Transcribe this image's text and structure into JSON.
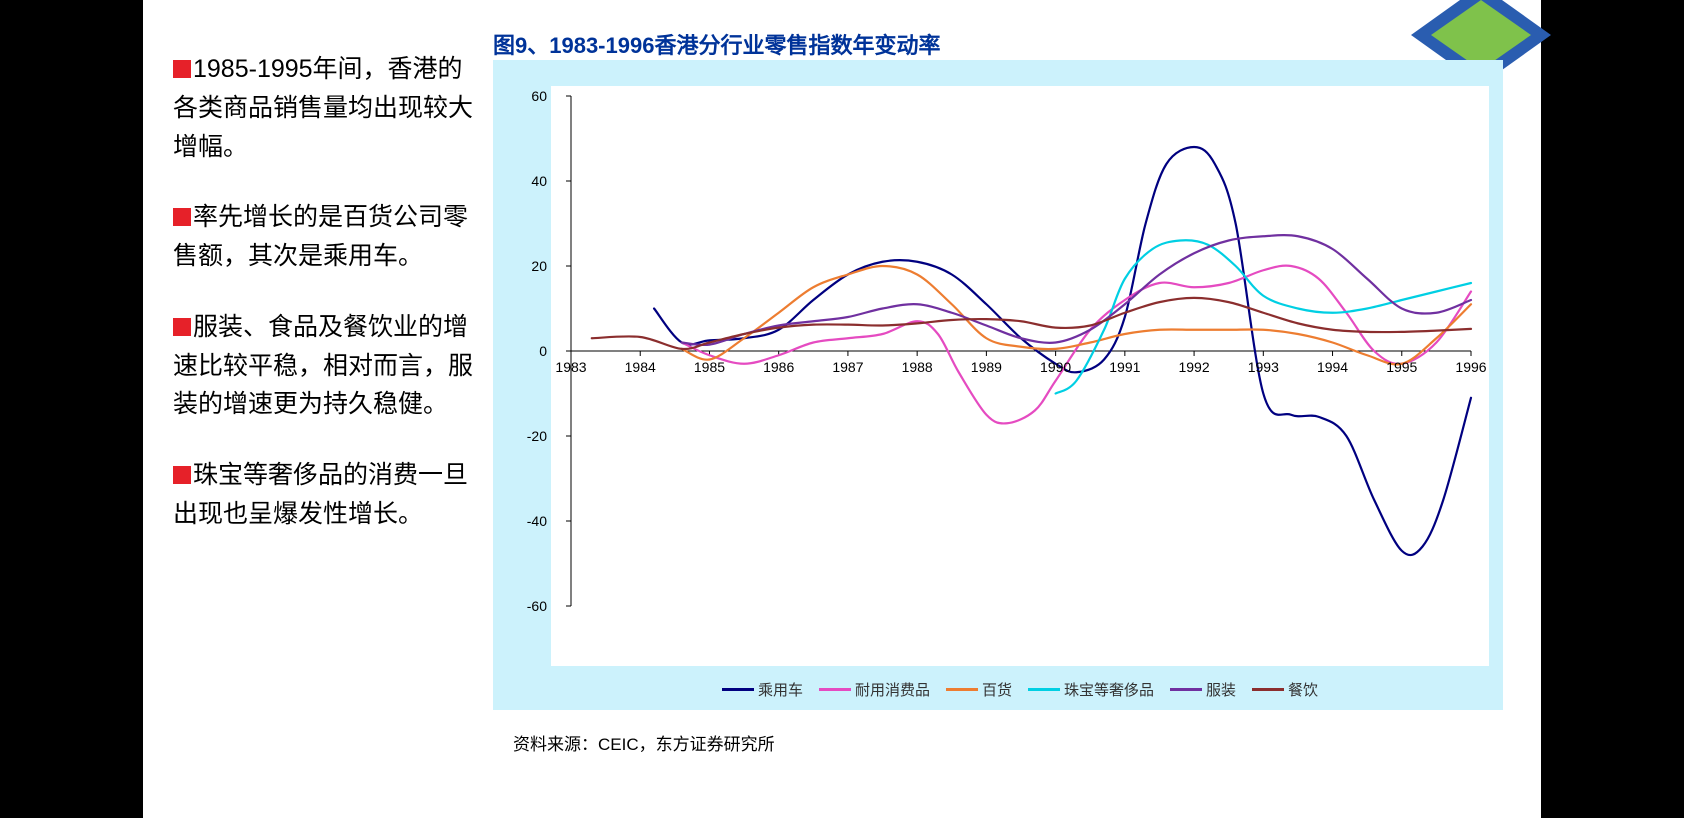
{
  "bullets": [
    "1985-1995年间，香港的各类商品销售量均出现较大增幅。",
    "率先增长的是百货公司零售额，其次是乘用车。",
    "服装、食品及餐饮业的增速比较平稳，相对而言，服装的增速更为持久稳健。",
    "珠宝等奢侈品的消费一旦出现也呈爆发性增长。"
  ],
  "bullet_color": "#e62129",
  "chart": {
    "title": "图9、1983-1996香港分行业零售指数年变动率",
    "title_color": "#003399",
    "title_fontsize": 22,
    "outer_bg": "#ccf2fc",
    "plot_bg": "#ffffff",
    "axis_color": "#000000",
    "axis_fontsize": 14,
    "line_width": 2.2,
    "x": {
      "min": 1983,
      "max": 1996,
      "ticks": [
        1983,
        1984,
        1985,
        1986,
        1987,
        1988,
        1989,
        1990,
        1991,
        1992,
        1993,
        1994,
        1995,
        1996
      ]
    },
    "y": {
      "min": -60,
      "max": 60,
      "ticks": [
        -60,
        -40,
        -20,
        0,
        20,
        40,
        60
      ]
    },
    "series": [
      {
        "name": "乘用车",
        "color": "#000080",
        "points": [
          [
            1984.2,
            10
          ],
          [
            1984.6,
            2
          ],
          [
            1985.0,
            2.5
          ],
          [
            1985.5,
            3
          ],
          [
            1986.0,
            5
          ],
          [
            1986.5,
            12
          ],
          [
            1987.0,
            18
          ],
          [
            1987.5,
            21
          ],
          [
            1988.0,
            21
          ],
          [
            1988.5,
            18
          ],
          [
            1989.0,
            11
          ],
          [
            1989.5,
            3
          ],
          [
            1990.0,
            -3
          ],
          [
            1990.3,
            -5
          ],
          [
            1990.7,
            -2
          ],
          [
            1991.0,
            8
          ],
          [
            1991.3,
            30
          ],
          [
            1991.6,
            44
          ],
          [
            1992.0,
            48
          ],
          [
            1992.3,
            44
          ],
          [
            1992.6,
            30
          ],
          [
            1993.0,
            -10
          ],
          [
            1993.4,
            -15
          ],
          [
            1993.8,
            -15.5
          ],
          [
            1994.2,
            -20
          ],
          [
            1994.6,
            -35
          ],
          [
            1995.0,
            -47
          ],
          [
            1995.3,
            -46
          ],
          [
            1995.6,
            -35
          ],
          [
            1996.0,
            -11
          ]
        ]
      },
      {
        "name": "耐用消费品",
        "color": "#e54bc1",
        "points": [
          [
            1984.6,
            2
          ],
          [
            1985.0,
            -1
          ],
          [
            1985.5,
            -3
          ],
          [
            1986.0,
            -1
          ],
          [
            1986.5,
            2
          ],
          [
            1987.0,
            3
          ],
          [
            1987.5,
            4
          ],
          [
            1988.0,
            7
          ],
          [
            1988.3,
            4
          ],
          [
            1988.6,
            -5
          ],
          [
            1989.0,
            -15
          ],
          [
            1989.3,
            -17
          ],
          [
            1989.7,
            -14
          ],
          [
            1990.0,
            -7
          ],
          [
            1990.5,
            5
          ],
          [
            1991.0,
            12
          ],
          [
            1991.5,
            16
          ],
          [
            1992.0,
            15
          ],
          [
            1992.5,
            16
          ],
          [
            1993.0,
            19
          ],
          [
            1993.4,
            20
          ],
          [
            1993.8,
            17
          ],
          [
            1994.2,
            9
          ],
          [
            1994.6,
            0
          ],
          [
            1995.0,
            -3
          ],
          [
            1995.5,
            2
          ],
          [
            1996.0,
            14
          ]
        ]
      },
      {
        "name": "百货",
        "color": "#ed7d31",
        "points": [
          [
            1984.6,
            0.5
          ],
          [
            1985.0,
            -2
          ],
          [
            1985.5,
            3
          ],
          [
            1986.0,
            9
          ],
          [
            1986.5,
            15
          ],
          [
            1987.0,
            18
          ],
          [
            1987.5,
            20
          ],
          [
            1988.0,
            18
          ],
          [
            1988.5,
            11
          ],
          [
            1989.0,
            3
          ],
          [
            1989.5,
            1
          ],
          [
            1990.0,
            0.5
          ],
          [
            1990.5,
            2
          ],
          [
            1991.0,
            4
          ],
          [
            1991.5,
            5
          ],
          [
            1992.0,
            5
          ],
          [
            1992.5,
            5
          ],
          [
            1993.0,
            5
          ],
          [
            1993.5,
            4
          ],
          [
            1994.0,
            2
          ],
          [
            1994.5,
            -1
          ],
          [
            1995.0,
            -3
          ],
          [
            1995.5,
            3
          ],
          [
            1996.0,
            11
          ]
        ]
      },
      {
        "name": "珠宝等奢侈品",
        "color": "#00cfe3",
        "points": [
          [
            1990.0,
            -10
          ],
          [
            1990.3,
            -7
          ],
          [
            1990.7,
            5
          ],
          [
            1991.0,
            17
          ],
          [
            1991.4,
            24
          ],
          [
            1991.8,
            26
          ],
          [
            1992.2,
            25
          ],
          [
            1992.6,
            20
          ],
          [
            1993.0,
            13
          ],
          [
            1993.5,
            10
          ],
          [
            1994.0,
            9
          ],
          [
            1994.5,
            10
          ],
          [
            1995.0,
            12
          ],
          [
            1995.5,
            14
          ],
          [
            1996.0,
            16
          ]
        ]
      },
      {
        "name": "服装",
        "color": "#7030a0",
        "points": [
          [
            1984.6,
            2
          ],
          [
            1985.0,
            1.5
          ],
          [
            1985.5,
            4
          ],
          [
            1986.0,
            6
          ],
          [
            1986.5,
            7
          ],
          [
            1987.0,
            8
          ],
          [
            1987.5,
            10
          ],
          [
            1988.0,
            11
          ],
          [
            1988.5,
            9
          ],
          [
            1989.0,
            6
          ],
          [
            1989.5,
            3
          ],
          [
            1990.0,
            2
          ],
          [
            1990.5,
            5
          ],
          [
            1991.0,
            11
          ],
          [
            1991.5,
            18
          ],
          [
            1992.0,
            23
          ],
          [
            1992.5,
            26
          ],
          [
            1993.0,
            27
          ],
          [
            1993.5,
            27
          ],
          [
            1994.0,
            24
          ],
          [
            1994.5,
            17
          ],
          [
            1995.0,
            10
          ],
          [
            1995.5,
            9
          ],
          [
            1996.0,
            12
          ]
        ]
      },
      {
        "name": "餐饮",
        "color": "#8b2e2e",
        "points": [
          [
            1983.3,
            3
          ],
          [
            1984.0,
            3.3
          ],
          [
            1984.6,
            0.5
          ],
          [
            1985.0,
            2
          ],
          [
            1985.5,
            4
          ],
          [
            1986.0,
            5.5
          ],
          [
            1986.5,
            6.2
          ],
          [
            1987.0,
            6.2
          ],
          [
            1987.5,
            6
          ],
          [
            1988.0,
            6.5
          ],
          [
            1988.5,
            7.3
          ],
          [
            1989.0,
            7.5
          ],
          [
            1989.5,
            7
          ],
          [
            1990.0,
            5.5
          ],
          [
            1990.5,
            6
          ],
          [
            1991.0,
            9
          ],
          [
            1991.5,
            11.5
          ],
          [
            1992.0,
            12.5
          ],
          [
            1992.5,
            11.5
          ],
          [
            1993.0,
            9
          ],
          [
            1993.5,
            6.5
          ],
          [
            1994.0,
            5
          ],
          [
            1994.5,
            4.5
          ],
          [
            1995.0,
            4.5
          ],
          [
            1995.5,
            4.8
          ],
          [
            1996.0,
            5.2
          ]
        ]
      }
    ]
  },
  "source": "资料来源：CEIC，东方证券研究所"
}
